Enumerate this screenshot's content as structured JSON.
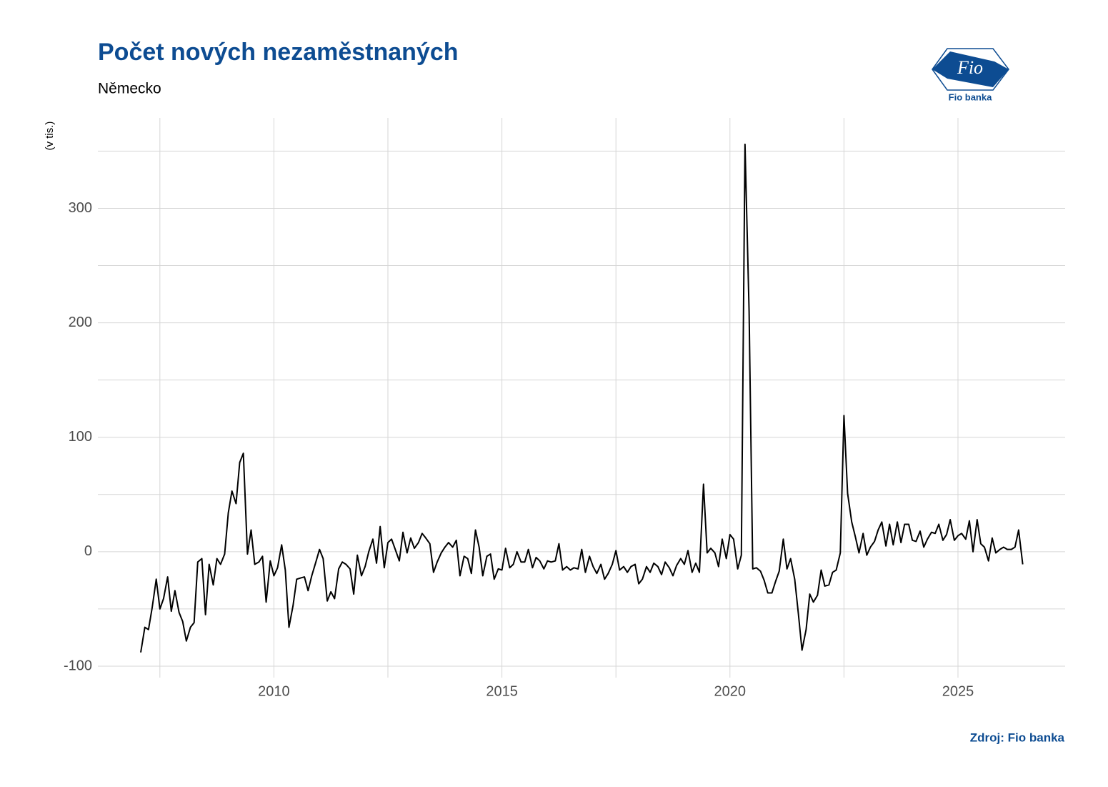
{
  "chart_data": {
    "type": "line",
    "title": "Počet nových nezaměstnaných",
    "subtitle": "Německo",
    "y_label": "(v tis.)",
    "source": "Zdroj: Fio banka",
    "logo": {
      "mark": "Fio",
      "caption": "Fio banka"
    },
    "color": "#000000",
    "grid": true,
    "xlim": [
      2006.14,
      2027.35
    ],
    "xticks": [
      2010,
      2015,
      2020,
      2025
    ],
    "ylim": [
      -110,
      379
    ],
    "yticks": [
      -100,
      0,
      100,
      200,
      300
    ],
    "x": [
      2007.08,
      2007.17,
      2007.25,
      2007.33,
      2007.42,
      2007.5,
      2007.58,
      2007.67,
      2007.75,
      2007.83,
      2007.92,
      2008.0,
      2008.08,
      2008.17,
      2008.25,
      2008.33,
      2008.42,
      2008.5,
      2008.58,
      2008.67,
      2008.75,
      2008.83,
      2008.92,
      2009.0,
      2009.08,
      2009.17,
      2009.25,
      2009.33,
      2009.42,
      2009.5,
      2009.58,
      2009.67,
      2009.75,
      2009.83,
      2009.92,
      2010.0,
      2010.08,
      2010.17,
      2010.25,
      2010.33,
      2010.42,
      2010.5,
      2010.58,
      2010.67,
      2010.75,
      2010.83,
      2010.92,
      2011.0,
      2011.08,
      2011.17,
      2011.25,
      2011.33,
      2011.42,
      2011.5,
      2011.58,
      2011.67,
      2011.75,
      2011.83,
      2011.92,
      2012.0,
      2012.08,
      2012.17,
      2012.25,
      2012.33,
      2012.42,
      2012.5,
      2012.58,
      2012.67,
      2012.75,
      2012.83,
      2012.92,
      2013.0,
      2013.08,
      2013.17,
      2013.25,
      2013.33,
      2013.42,
      2013.5,
      2013.58,
      2013.67,
      2013.75,
      2013.83,
      2013.92,
      2014.0,
      2014.08,
      2014.17,
      2014.25,
      2014.33,
      2014.42,
      2014.5,
      2014.58,
      2014.67,
      2014.75,
      2014.83,
      2014.92,
      2015.0,
      2015.08,
      2015.17,
      2015.25,
      2015.33,
      2015.42,
      2015.5,
      2015.58,
      2015.67,
      2015.75,
      2015.83,
      2015.92,
      2016.0,
      2016.08,
      2016.17,
      2016.25,
      2016.33,
      2016.42,
      2016.5,
      2016.58,
      2016.67,
      2016.75,
      2016.83,
      2016.92,
      2017.0,
      2017.08,
      2017.17,
      2017.25,
      2017.33,
      2017.42,
      2017.5,
      2017.58,
      2017.67,
      2017.75,
      2017.83,
      2017.92,
      2018.0,
      2018.08,
      2018.17,
      2018.25,
      2018.33,
      2018.42,
      2018.5,
      2018.58,
      2018.67,
      2018.75,
      2018.83,
      2018.92,
      2019.0,
      2019.08,
      2019.17,
      2019.25,
      2019.33,
      2019.42,
      2019.5,
      2019.58,
      2019.67,
      2019.75,
      2019.83,
      2019.92,
      2020.0,
      2020.08,
      2020.17,
      2020.25,
      2020.33,
      2020.42,
      2020.5,
      2020.58,
      2020.67,
      2020.75,
      2020.83,
      2020.92,
      2021.0,
      2021.08,
      2021.17,
      2021.25,
      2021.33,
      2021.42,
      2021.5,
      2021.58,
      2021.67,
      2021.75,
      2021.83,
      2021.92,
      2022.0,
      2022.08,
      2022.17,
      2022.25,
      2022.33,
      2022.42,
      2022.5,
      2022.58,
      2022.67,
      2022.75,
      2022.83,
      2022.92,
      2023.0,
      2023.08,
      2023.17,
      2023.25,
      2023.33,
      2023.42,
      2023.5,
      2023.58,
      2023.67,
      2023.75,
      2023.83,
      2023.92,
      2024.0,
      2024.08,
      2024.17,
      2024.25,
      2024.33,
      2024.42,
      2024.5,
      2024.58,
      2024.67,
      2024.75,
      2024.83,
      2024.92,
      2025.0,
      2025.08,
      2025.17,
      2025.25,
      2025.33,
      2025.42,
      2025.5,
      2025.58,
      2025.67,
      2025.75,
      2025.83,
      2025.92,
      2026.0,
      2026.08,
      2026.17,
      2026.25,
      2026.33,
      2026.42
    ],
    "values": [
      -88,
      -66,
      -68,
      -49,
      -24,
      -50,
      -41,
      -22,
      -52,
      -34,
      -53,
      -61,
      -78,
      -66,
      -62,
      -9,
      -6,
      -55,
      -11,
      -29,
      -6,
      -11,
      -2,
      34,
      53,
      42,
      78,
      86,
      -2,
      19,
      -11,
      -9,
      -4,
      -44,
      -8,
      -21,
      -14,
      6,
      -16,
      -66,
      -47,
      -24,
      -23,
      -22,
      -34,
      -21,
      -9,
      2,
      -6,
      -43,
      -35,
      -41,
      -15,
      -9,
      -11,
      -15,
      -37,
      -3,
      -21,
      -13,
      0,
      11,
      -10,
      22,
      -14,
      8,
      11,
      1,
      -8,
      17,
      -1,
      12,
      3,
      8,
      16,
      12,
      7,
      -18,
      -9,
      -1,
      4,
      8,
      4,
      10,
      -21,
      -4,
      -6,
      -19,
      19,
      4,
      -21,
      -4,
      -2,
      -24,
      -15,
      -16,
      3,
      -14,
      -11,
      0,
      -9,
      -9,
      2,
      -14,
      -5,
      -8,
      -15,
      -8,
      -9,
      -8,
      7,
      -16,
      -13,
      -16,
      -14,
      -15,
      2,
      -18,
      -4,
      -13,
      -19,
      -11,
      -24,
      -19,
      -11,
      1,
      -16,
      -13,
      -18,
      -13,
      -11,
      -28,
      -24,
      -13,
      -18,
      -10,
      -13,
      -20,
      -9,
      -14,
      -21,
      -12,
      -6,
      -11,
      1,
      -18,
      -10,
      -18,
      59,
      -1,
      3,
      -1,
      -13,
      11,
      -6,
      15,
      11,
      -15,
      -3,
      356,
      210,
      -15,
      -14,
      -17,
      -25,
      -36,
      -36,
      -26,
      -17,
      11,
      -15,
      -6,
      -24,
      -54,
      -86,
      -68,
      -37,
      -44,
      -38,
      -16,
      -30,
      -29,
      -18,
      -16,
      -1,
      119,
      51,
      26,
      13,
      -1,
      16,
      -3,
      4,
      9,
      19,
      26,
      5,
      24,
      6,
      26,
      8,
      24,
      24,
      10,
      9,
      18,
      4,
      11,
      17,
      16,
      24,
      10,
      15,
      28,
      10,
      14,
      16,
      11,
      27,
      0,
      28,
      7,
      4,
      -8,
      12,
      -1,
      2,
      4,
      2,
      2,
      4,
      19,
      -11
    ]
  }
}
